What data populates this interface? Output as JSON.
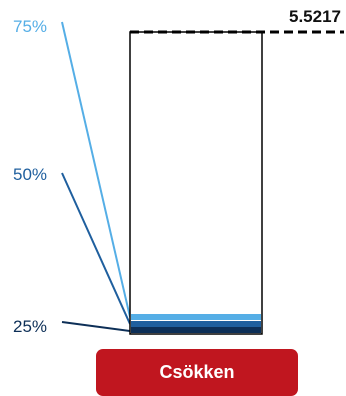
{
  "chart_data": {
    "type": "bar",
    "title": "",
    "value_label": "5.5217",
    "value": 5.5217,
    "percentile_labels": [
      "75%",
      "50%",
      "25%"
    ],
    "percentiles": [
      {
        "label": "75%",
        "color": "#55aee6"
      },
      {
        "label": "50%",
        "color": "#1f5f9e"
      },
      {
        "label": "25%",
        "color": "#0d2f57"
      }
    ],
    "colors": {
      "bar_outline": "#000000",
      "reference_line": "#000000"
    }
  },
  "button": {
    "label": "Csökken",
    "color": "#c0161f"
  }
}
